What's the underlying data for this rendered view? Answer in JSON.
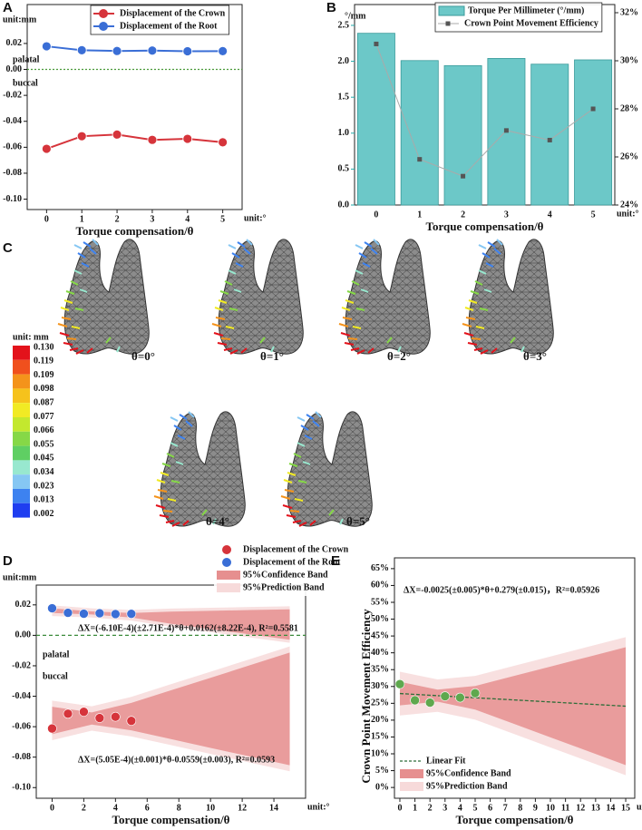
{
  "chart_data": [
    {
      "label": "A",
      "type": "line",
      "y_unit": "unit:mm",
      "xlabel": "Torque compensation/θ",
      "x_unit": "unit:°",
      "annotations": [
        "palatal",
        "buccal"
      ],
      "legend": "upper center",
      "x": [
        0,
        1,
        2,
        3,
        4,
        5
      ],
      "xlim": [
        -0.55,
        5.55
      ],
      "xticks": [
        0,
        1,
        2,
        3,
        4,
        5
      ],
      "ylim": [
        -0.108,
        0.05
      ],
      "yticks": [
        {
          "value": -0.1,
          "label": "-0.10"
        },
        -0.08,
        -0.06,
        -0.04,
        -0.02,
        {
          "value": 0,
          "label": "0.00"
        },
        0.02
      ],
      "hline": {
        "value": 0,
        "color": "#4a9a3a",
        "dash": "2,2"
      },
      "series": [
        {
          "name": "Displacement of the Crown",
          "color": "#d6343b",
          "values": [
            -0.0612,
            -0.0515,
            -0.0502,
            -0.0543,
            -0.0535,
            -0.0562
          ]
        },
        {
          "name": "Displacement of the Root",
          "color": "#3a6ed6",
          "values": [
            0.0178,
            0.0148,
            0.0142,
            0.0145,
            0.014,
            0.0141
          ]
        }
      ]
    },
    {
      "label": "B",
      "type": "bar",
      "y_unit": "°/mm",
      "xlabel": "Torque compensation/θ",
      "x_unit": "unit:°",
      "legend": "upper right",
      "categories": [
        "0",
        "1",
        "2",
        "3",
        "4",
        "5"
      ],
      "ylim": [
        0,
        2.79
      ],
      "yticks": [
        {
          "value": 0,
          "label": "0.0"
        },
        0.5,
        {
          "value": 1,
          "label": "1.0"
        },
        1.5,
        {
          "value": 2,
          "label": "2.0"
        },
        2.5
      ],
      "y2lim": [
        24,
        32.34
      ],
      "y2ticks": [
        {
          "value": 24,
          "label": "24%"
        },
        {
          "value": 26,
          "label": "26%"
        },
        {
          "value": 28,
          "label": "28%"
        },
        {
          "value": 30,
          "label": "30%"
        },
        {
          "value": 32,
          "label": "32%"
        }
      ],
      "series": [
        {
          "name": "Torque Per Millimeter (°/mm)",
          "color": "#6cc8c8",
          "values": [
            2.39,
            2.01,
            1.94,
            2.04,
            1.96,
            2.02
          ]
        },
        {
          "name": "Crown Point Movement Efficiency",
          "type": "line",
          "axis": "y2",
          "color": "#555555",
          "values": [
            30.7,
            25.9,
            25.2,
            27.1,
            26.7,
            28.0
          ]
        }
      ]
    },
    {
      "label": "D",
      "type": "scatter",
      "y_unit": "unit:mm",
      "xlabel": "Torque compensation/θ",
      "x_unit": "unit:°",
      "legend": "above right",
      "annotations": [
        "ΔX=(-6.10E-4)(±2.71E-4)*θ+0.0162(±8.22E-4), R²=0.5581",
        "palatal",
        "buccal",
        "ΔX=(5.05E-4)(±0.001)*θ-0.0559(±0.003), R²=0.0593"
      ],
      "xlim": [
        -1,
        16
      ],
      "xticks": [
        0,
        2,
        4,
        6,
        8,
        10,
        12,
        14
      ],
      "ylim": [
        -0.107,
        0.033
      ],
      "yticks": [
        {
          "value": -0.1,
          "label": "-0.10"
        },
        -0.08,
        -0.06,
        -0.04,
        -0.02,
        {
          "value": 0,
          "label": "0.00"
        },
        0.02
      ],
      "hline": {
        "value": 0,
        "color": "#3a8a3a",
        "dash": "4,3"
      },
      "series": [
        {
          "name": "Displacement of the Crown",
          "color": "#d6343b",
          "x": [
            0,
            1,
            2,
            3,
            4,
            5
          ],
          "values": [
            -0.0612,
            -0.0515,
            -0.0502,
            -0.0543,
            -0.0535,
            -0.0562
          ]
        },
        {
          "name": "Displacement of the Root",
          "color": "#3a6ed6",
          "x": [
            0,
            1,
            2,
            3,
            4,
            5
          ],
          "values": [
            0.0178,
            0.0148,
            0.0142,
            0.0145,
            0.014,
            0.0141
          ]
        }
      ],
      "bands": [
        {
          "name": "95%Confidence Band",
          "color": "#e68f8f",
          "pieces": [
            {
              "x": [
                0,
                2.5,
                5,
                7.5,
                10,
                12.5,
                15
              ],
              "lower": [
                0.0147,
                0.0137,
                0.0117,
                0.0076,
                0.0041,
                0.0006,
                -0.0029
              ],
              "upper": [
                0.0177,
                0.0157,
                0.0147,
                0.0156,
                0.0161,
                0.0166,
                0.0171
              ]
            },
            {
              "x": [
                0,
                2.5,
                5,
                7.5,
                10,
                12.5,
                15
              ],
              "lower": [
                -0.0649,
                -0.0586,
                -0.0624,
                -0.0681,
                -0.0739,
                -0.0796,
                -0.0853
              ],
              "upper": [
                -0.0469,
                -0.0506,
                -0.0444,
                -0.0361,
                -0.0279,
                -0.0196,
                -0.0113
              ]
            }
          ]
        },
        {
          "name": "95%Prediction Band",
          "color": "#f7dada",
          "pieces": [
            {
              "x": [
                0,
                2.5,
                5,
                7.5,
                10,
                12.5,
                15
              ],
              "lower": [
                0.0127,
                0.0117,
                0.0097,
                0.0056,
                0.0021,
                -0.0014,
                -0.0049
              ],
              "upper": [
                0.0197,
                0.0177,
                0.0167,
                0.0176,
                0.0181,
                0.0186,
                0.0191
              ]
            },
            {
              "x": [
                0,
                2.5,
                5,
                7.5,
                10,
                12.5,
                15
              ],
              "lower": [
                -0.0689,
                -0.0626,
                -0.0664,
                -0.0721,
                -0.0779,
                -0.0836,
                -0.0893
              ],
              "upper": [
                -0.0429,
                -0.0466,
                -0.0404,
                -0.0321,
                -0.0239,
                -0.0156,
                -0.0073
              ]
            }
          ]
        }
      ]
    },
    {
      "label": "E",
      "type": "scatter",
      "ylabel": "Crown Point Movement Efficiency",
      "xlabel": "Torque compensation/θ",
      "x_unit": "unit:°",
      "legend": "lower left",
      "annotations": [
        "ΔX=-0.0025(±0.005)*θ+0.279(±0.015)，R²=0.05926"
      ],
      "xlim": [
        -0.36,
        15.6
      ],
      "xticks": [
        0,
        1,
        2,
        3,
        4,
        5,
        6,
        7,
        8,
        9,
        10,
        11,
        12,
        13,
        14,
        15
      ],
      "ylim": [
        -3.2,
        68.2
      ],
      "yticks": [
        {
          "value": 0,
          "label": "0%"
        },
        {
          "value": 5,
          "label": "5%"
        },
        {
          "value": 10,
          "label": "10%"
        },
        {
          "value": 15,
          "label": "15%"
        },
        {
          "value": 20,
          "label": "20%"
        },
        {
          "value": 25,
          "label": "25%"
        },
        {
          "value": 30,
          "label": "30%"
        },
        {
          "value": 35,
          "label": "35%"
        },
        {
          "value": 40,
          "label": "40%"
        },
        {
          "value": 45,
          "label": "45%"
        },
        {
          "value": 50,
          "label": "50%"
        },
        {
          "value": 55,
          "label": "55%"
        },
        {
          "value": 60,
          "label": "60%"
        },
        {
          "value": 65,
          "label": "65%"
        }
      ],
      "series": [
        {
          "color": "#5fa84e",
          "x": [
            0,
            1,
            2,
            3,
            4,
            5
          ],
          "values": [
            30.7,
            25.9,
            25.2,
            27.1,
            26.7,
            28.0
          ]
        }
      ],
      "fits": [
        {
          "name": "Linear Fit",
          "color": "#2f6e3a",
          "x": [
            0,
            15
          ],
          "values": [
            27.9,
            24.15
          ]
        }
      ],
      "bands": [
        {
          "name": "95%Confidence Band",
          "color": "#e68f8f",
          "pieces": [
            {
              "x": [
                0,
                2.5,
                5,
                7.5,
                10,
                12.5,
                15
              ],
              "lower": [
                24.4,
                25.48,
                23.15,
                19.03,
                14.9,
                10.78,
                6.65
              ],
              "upper": [
                31.4,
                29.08,
                30.15,
                33.03,
                35.9,
                38.78,
                41.65
              ]
            }
          ]
        },
        {
          "name": "95%Prediction Band",
          "color": "#f7dada",
          "pieces": [
            {
              "x": [
                0,
                2.5,
                5,
                7.5,
                10,
                12.5,
                15
              ],
              "lower": [
                21.4,
                22.48,
                20.15,
                16.03,
                11.9,
                7.78,
                3.65
              ],
              "upper": [
                34.4,
                32.08,
                33.15,
                36.03,
                38.9,
                41.78,
                44.65
              ]
            }
          ]
        }
      ]
    }
  ],
  "panel_c": {
    "label": "C",
    "captions": [
      "θ=0°",
      "θ=1°",
      "θ=2°",
      "θ=3°",
      "θ=4°",
      "θ=5°"
    ],
    "colorbar": {
      "title": "unit: mm",
      "ticks": [
        {
          "value": 0.13,
          "label": "0.130"
        },
        0.119,
        0.109,
        0.098,
        0.087,
        0.077,
        0.066,
        0.055,
        0.045,
        0.034,
        0.023,
        0.013,
        0.002
      ],
      "colors": [
        "#e3121b",
        "#f0501d",
        "#f4931b",
        "#f6c21c",
        "#f1ea24",
        "#c3e82e",
        "#86d847",
        "#5fcf63",
        "#98e8cf",
        "#86c7f3",
        "#3d82f0",
        "#1f3ef0"
      ]
    }
  }
}
